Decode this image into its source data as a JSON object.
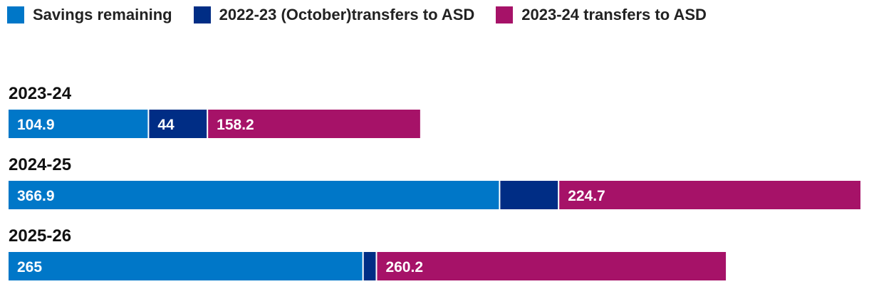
{
  "chart_data": {
    "type": "bar",
    "orientation": "horizontal",
    "stacked": true,
    "title": "",
    "xlabel": "",
    "ylabel": "",
    "categories": [
      "2023-24",
      "2024-25",
      "2025-26"
    ],
    "series": [
      {
        "name": "Savings remaining",
        "color": "#0077C8",
        "values": [
          104.9,
          366.9,
          265
        ]
      },
      {
        "name": "2022-23 (October)transfers to ASD",
        "color": "#002D85",
        "values": [
          44,
          44,
          10
        ]
      },
      {
        "name": "2023-24 transfers to ASD",
        "color": "#A61268",
        "values": [
          158.2,
          224.7,
          260.2
        ]
      }
    ],
    "data_labels": [
      [
        "104.9",
        "44",
        "158.2"
      ],
      [
        "366.9",
        "",
        "224.7"
      ],
      [
        "265",
        "",
        "260.2"
      ]
    ],
    "xlim": [
      0,
      635.6
    ],
    "grid": false,
    "legend_position": "top-left"
  }
}
